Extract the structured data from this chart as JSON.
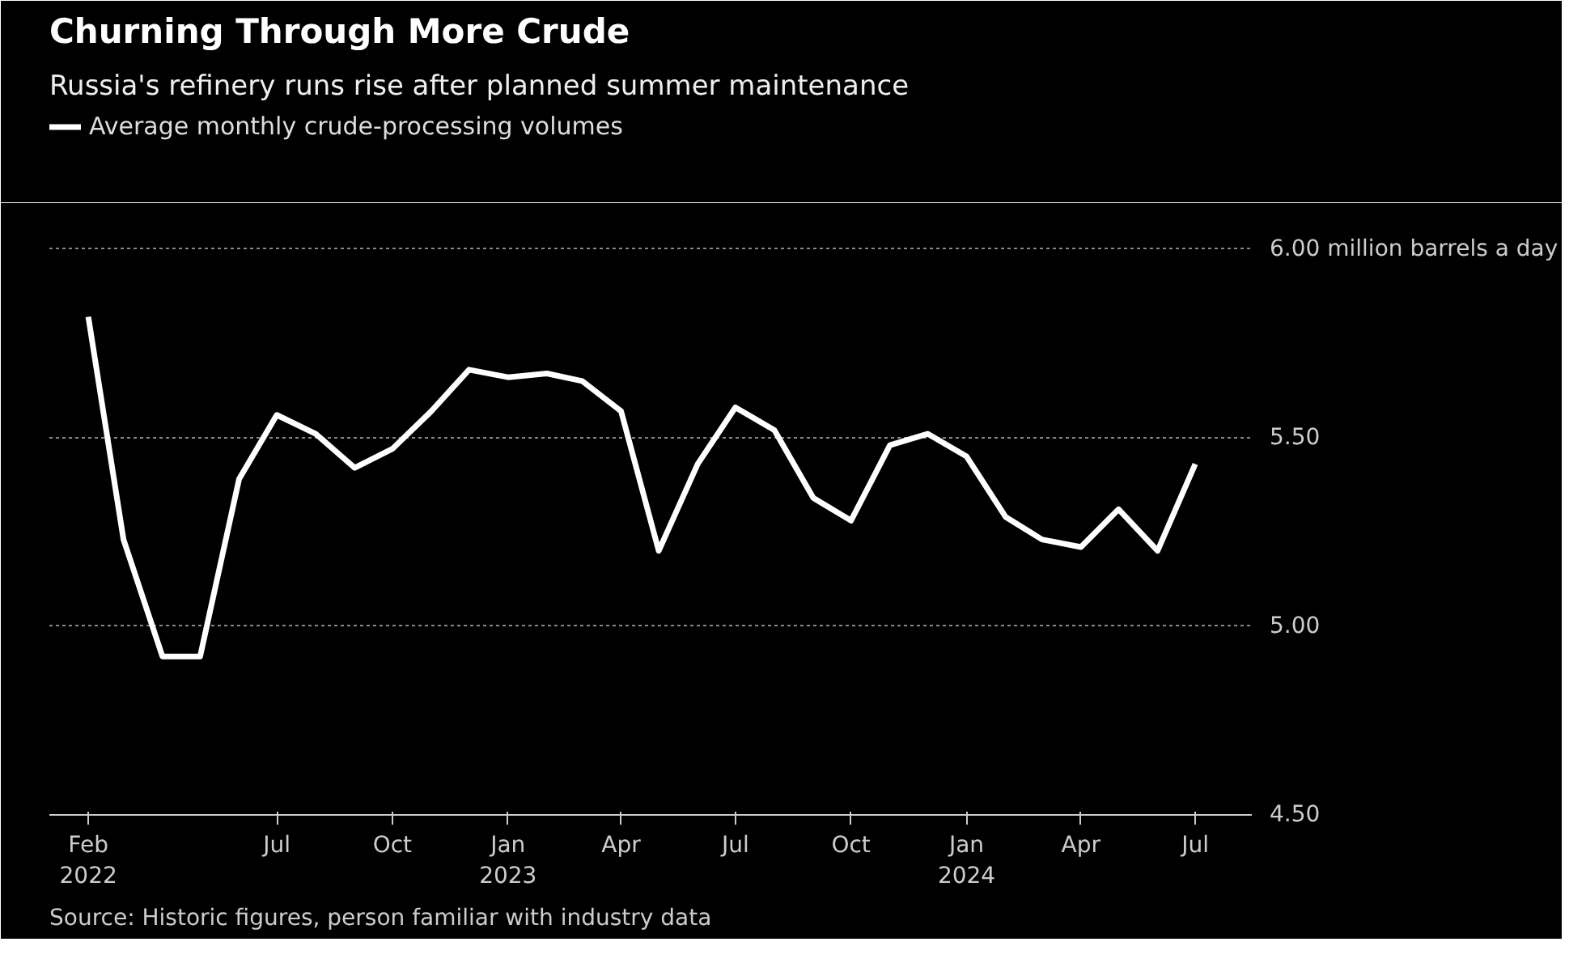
{
  "chart_data": {
    "type": "line",
    "title": "Churning Through More Crude",
    "subtitle": "Russia's refinery runs rise after planned summer maintenance",
    "x": [
      "2022-02",
      "2022-03",
      "2022-04",
      "2022-05",
      "2022-06",
      "2022-07",
      "2022-08",
      "2022-09",
      "2022-10",
      "2022-11",
      "2022-12",
      "2023-01",
      "2023-02",
      "2023-03",
      "2023-04",
      "2023-05",
      "2023-06",
      "2023-07",
      "2023-08",
      "2023-09",
      "2023-10",
      "2023-11",
      "2023-12",
      "2024-01",
      "2024-02",
      "2024-03",
      "2024-04",
      "2024-05",
      "2024-06",
      "2024-07"
    ],
    "series": [
      {
        "name": "Average monthly crude-processing volumes",
        "color": "#ffffff",
        "values": [
          5.82,
          5.23,
          4.92,
          4.92,
          5.39,
          5.56,
          5.51,
          5.42,
          5.47,
          5.57,
          5.68,
          5.66,
          5.67,
          5.65,
          5.57,
          5.2,
          5.43,
          5.58,
          5.52,
          5.34,
          5.28,
          5.48,
          5.51,
          5.45,
          5.29,
          5.23,
          5.21,
          5.31,
          5.2,
          5.43
        ]
      }
    ],
    "xlim": [
      "2022-01",
      "2024-08-15"
    ],
    "xticks": [
      {
        "value": "2022-02",
        "label": "Feb\n2022"
      },
      {
        "value": "2022-07",
        "label": "Jul"
      },
      {
        "value": "2022-10",
        "label": "Oct"
      },
      {
        "value": "2023-01",
        "label": "Jan\n2023"
      },
      {
        "value": "2023-04",
        "label": "Apr"
      },
      {
        "value": "2023-07",
        "label": "Jul"
      },
      {
        "value": "2023-10",
        "label": "Oct"
      },
      {
        "value": "2024-01",
        "label": "Jan\n2024"
      },
      {
        "value": "2024-04",
        "label": "Apr"
      },
      {
        "value": "2024-07",
        "label": "Jul"
      }
    ],
    "ylim": [
      4.5,
      6.1
    ],
    "yticks": [
      {
        "value": 4.5,
        "label": "4.50"
      },
      {
        "value": 5.0,
        "label": "5.00"
      },
      {
        "value": 5.5,
        "label": "5.50"
      },
      {
        "value": 6.0,
        "label": "6.00 million barrels a day"
      }
    ],
    "grid": "y",
    "legend": "top left",
    "line_style": "solid",
    "marker": "none",
    "annotations": [
      "Source: Historic figures, person familiar with industry data"
    ]
  }
}
